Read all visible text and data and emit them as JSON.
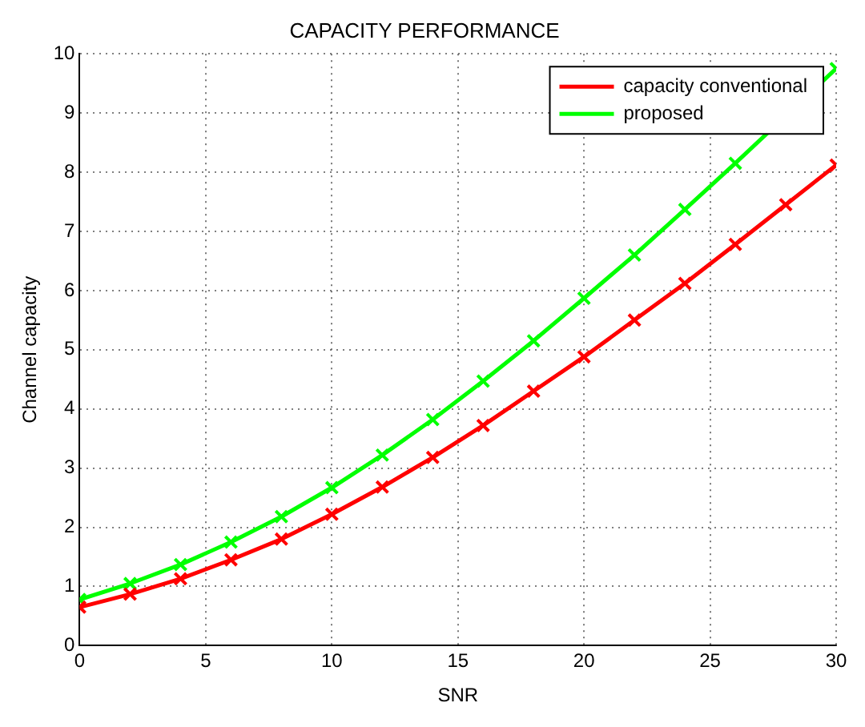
{
  "chart_data": {
    "type": "line",
    "title": "CAPACITY PERFORMANCE",
    "xlabel": "SNR",
    "ylabel": "Channel capacity",
    "x": [
      0,
      2,
      4,
      6,
      8,
      10,
      12,
      14,
      16,
      18,
      20,
      22,
      24,
      26,
      28,
      30
    ],
    "series": [
      {
        "name": "capacity conventional",
        "color": "#ff0000",
        "values": [
          0.65,
          0.87,
          1.13,
          1.45,
          1.8,
          2.22,
          2.68,
          3.18,
          3.72,
          4.3,
          4.88,
          5.5,
          6.12,
          6.78,
          7.45,
          8.12
        ]
      },
      {
        "name": "proposed",
        "color": "#00ff00",
        "values": [
          0.78,
          1.05,
          1.37,
          1.75,
          2.18,
          2.67,
          3.22,
          3.82,
          4.47,
          5.15,
          5.87,
          6.6,
          7.37,
          8.15,
          null,
          9.75
        ]
      }
    ],
    "xlim": [
      0,
      30
    ],
    "xticks": [
      0,
      5,
      10,
      15,
      20,
      25,
      30
    ],
    "ylim": [
      0,
      10
    ],
    "yticks": [
      0,
      1,
      2,
      3,
      4,
      5,
      6,
      7,
      8,
      9,
      10
    ],
    "grid": true,
    "legend": "top right",
    "marker": "cross",
    "line_style": "solid"
  }
}
